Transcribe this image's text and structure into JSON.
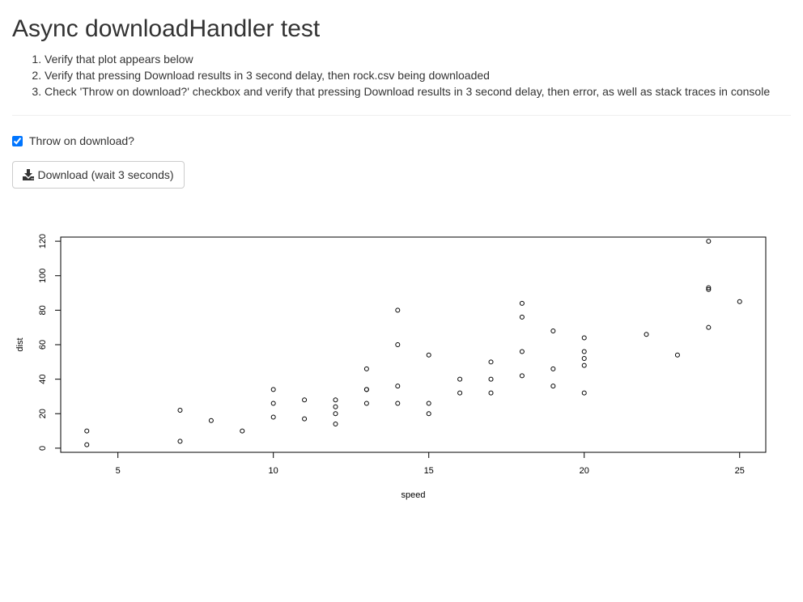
{
  "page": {
    "title": "Async downloadHandler test",
    "steps": [
      "Verify that plot appears below",
      "Verify that pressing Download results in 3 second delay, then rock.csv being downloaded",
      "Check 'Throw on download?' checkbox and verify that pressing Download results in 3 second delay, then error, as well as stack traces in console"
    ]
  },
  "controls": {
    "throw_checkbox_label": "Throw on download?",
    "throw_checked": true,
    "download_label": "Download (wait 3 seconds)",
    "download_icon": "download-icon"
  },
  "chart_data": {
    "type": "scatter",
    "title": "",
    "xlabel": "speed",
    "ylabel": "dist",
    "xlim": [
      3.16,
      25.84
    ],
    "ylim": [
      -2.4,
      122.4
    ],
    "xticks": [
      5,
      10,
      15,
      20,
      25
    ],
    "yticks": [
      0,
      20,
      40,
      60,
      80,
      100,
      120
    ],
    "grid": false,
    "point_style": "open-circle",
    "x": [
      4,
      4,
      7,
      7,
      8,
      9,
      10,
      10,
      10,
      11,
      11,
      12,
      12,
      12,
      12,
      13,
      13,
      13,
      13,
      14,
      14,
      14,
      14,
      15,
      15,
      15,
      16,
      16,
      17,
      17,
      17,
      18,
      18,
      18,
      18,
      19,
      19,
      19,
      20,
      20,
      20,
      20,
      20,
      22,
      23,
      24,
      24,
      24,
      24,
      25
    ],
    "y": [
      2,
      10,
      4,
      22,
      16,
      10,
      18,
      26,
      34,
      17,
      28,
      14,
      20,
      24,
      28,
      26,
      34,
      34,
      46,
      26,
      36,
      60,
      80,
      20,
      26,
      54,
      32,
      40,
      32,
      40,
      50,
      42,
      56,
      76,
      84,
      36,
      46,
      68,
      32,
      48,
      52,
      56,
      64,
      66,
      54,
      70,
      92,
      93,
      120,
      85
    ]
  }
}
